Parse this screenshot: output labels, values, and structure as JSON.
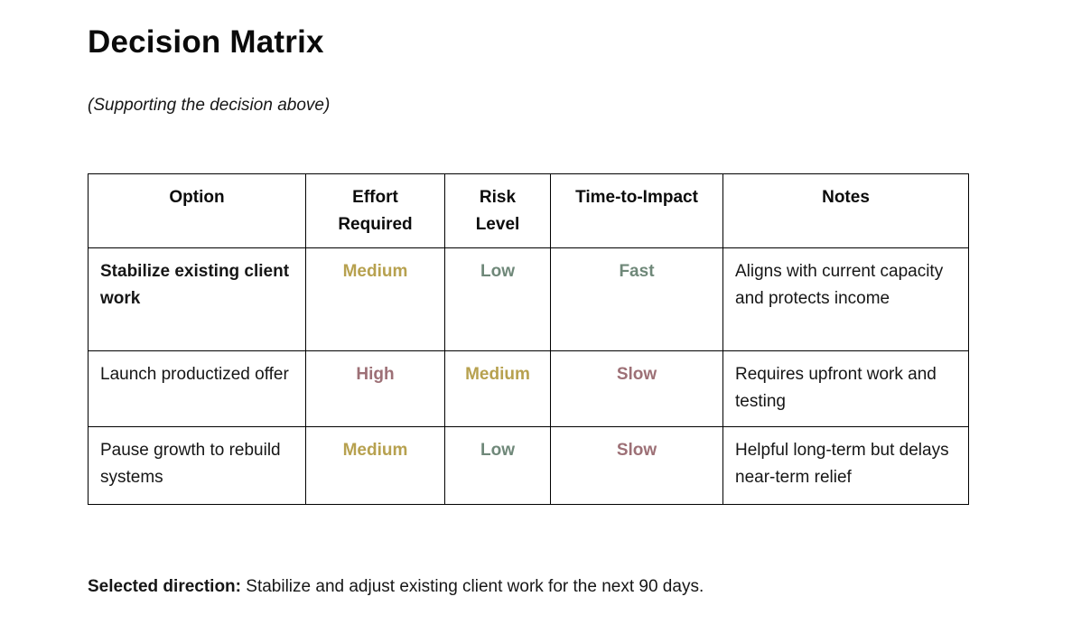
{
  "document": {
    "title": "Decision Matrix",
    "subtitle": "(Supporting the decision above)",
    "footer": {
      "label": "Selected direction:",
      "text": " Stabilize and adjust existing client work for the next 90 days."
    }
  },
  "colors": {
    "gold": "#b7a14f",
    "green": "#6f8879",
    "mauve": "#9d7076"
  },
  "table": {
    "headers": {
      "option": "Option",
      "effort": "Effort Required",
      "risk": "Risk Level",
      "time": "Time-to-Impact",
      "notes": "Notes"
    },
    "rows": [
      {
        "option": "Stabilize existing client work",
        "effort": {
          "label": "Medium"
        },
        "risk": {
          "label": "Low"
        },
        "time": {
          "label": "Fast"
        },
        "notes": "Aligns with current capacity and protects income"
      },
      {
        "option": "Launch productized offer",
        "effort": {
          "label": "High"
        },
        "risk": {
          "label": "Medium"
        },
        "time": {
          "label": "Slow"
        },
        "notes": "Requires upfront work and testing"
      },
      {
        "option": "Pause growth to rebuild systems",
        "effort": {
          "label": "Medium"
        },
        "risk": {
          "label": "Low"
        },
        "time": {
          "label": "Slow"
        },
        "notes": "Helpful long-term but delays near-term relief"
      }
    ]
  }
}
